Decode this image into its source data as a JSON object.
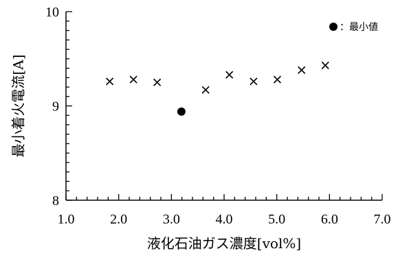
{
  "chart_data": {
    "type": "scatter",
    "xlabel": "液化石油ガス濃度[vol%]",
    "ylabel": "最小着火電流[A]",
    "xlim": [
      1.0,
      7.0
    ],
    "ylim": [
      8,
      10
    ],
    "x_ticks": [
      "1.0",
      "2.0",
      "3.0",
      "4.0",
      "5.0",
      "6.0",
      "7.0"
    ],
    "y_ticks": [
      "8",
      "9",
      "10"
    ],
    "grid": false,
    "legend_position": "top-right",
    "series": [
      {
        "marker": "x",
        "x": [
          1.83,
          2.28,
          2.73,
          3.65,
          4.1,
          4.56,
          5.01,
          5.47,
          5.92
        ],
        "y": [
          9.26,
          9.28,
          9.25,
          9.17,
          9.33,
          9.26,
          9.28,
          9.38,
          9.43
        ]
      },
      {
        "name": "：最小値",
        "marker": "circle",
        "x": [
          3.19
        ],
        "y": [
          8.94
        ]
      }
    ]
  }
}
